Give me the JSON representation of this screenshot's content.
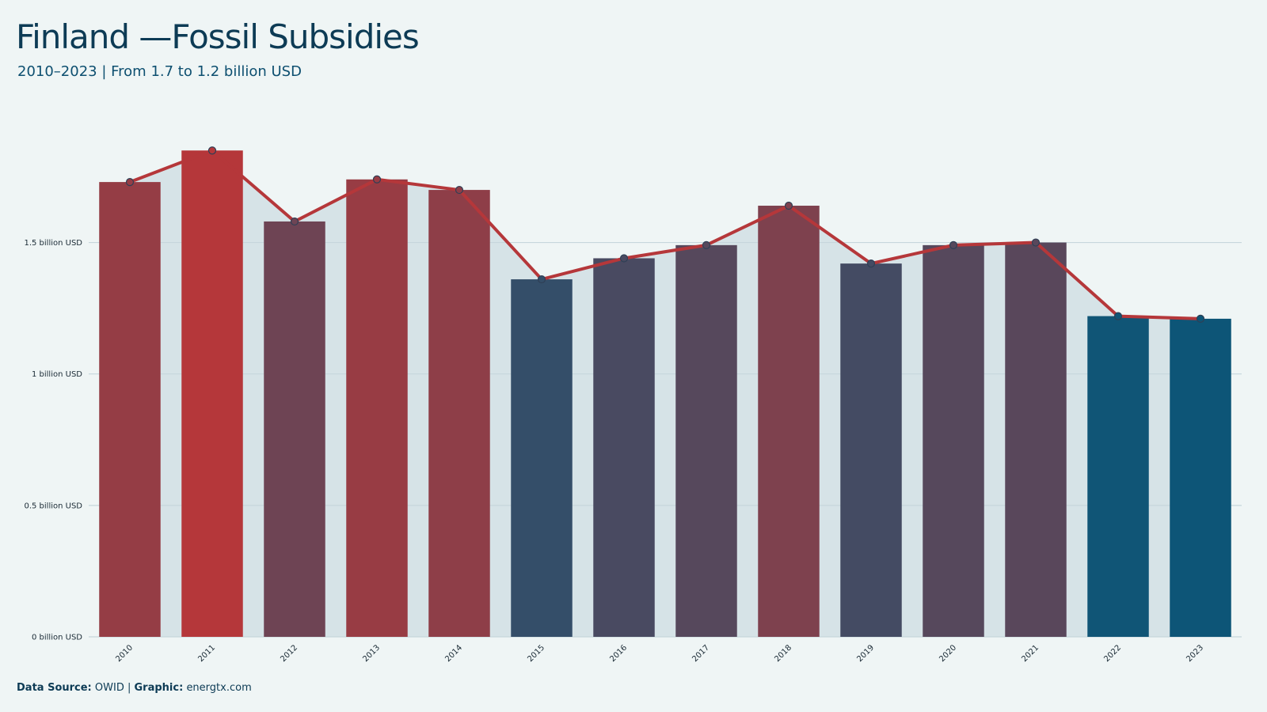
{
  "header": {
    "title": "Finland —Fossil Subsidies",
    "subtitle": "2010–2023 | From 1.7 to 1.2 billion USD"
  },
  "footer": {
    "source_label": "Data Source:",
    "source_value": "OWID",
    "separator": "|",
    "graphic_label": "Graphic:",
    "graphic_value": "energtx.com"
  },
  "colors": {
    "background": "#eff5f5",
    "plot_fill": "#d6e3e7",
    "grid": "#c6d6dc",
    "line": "#b5373a",
    "marker_edge": "#2f3f55",
    "high": "#b5373a",
    "low": "#0d5577"
  },
  "chart_data": {
    "type": "bar",
    "title": "Finland —Fossil Subsidies",
    "subtitle": "2010–2023 | From 1.7 to 1.2 billion USD",
    "xlabel": "",
    "ylabel": "",
    "ylim": [
      0,
      1.95
    ],
    "yticks": [
      0,
      0.5,
      1,
      1.5
    ],
    "ytick_labels": [
      "0 billion USD",
      "0.5 billion USD",
      "1 billion USD",
      "1.5 billion USD"
    ],
    "grid": true,
    "categories": [
      "2010",
      "2011",
      "2012",
      "2013",
      "2014",
      "2015",
      "2016",
      "2017",
      "2018",
      "2019",
      "2020",
      "2021",
      "2022",
      "2023"
    ],
    "values": [
      1.73,
      1.85,
      1.58,
      1.74,
      1.7,
      1.36,
      1.44,
      1.49,
      1.64,
      1.42,
      1.49,
      1.5,
      1.22,
      1.21
    ],
    "overlay": {
      "type": "line",
      "values": [
        1.73,
        1.85,
        1.58,
        1.74,
        1.7,
        1.36,
        1.44,
        1.49,
        1.64,
        1.42,
        1.49,
        1.5,
        1.22,
        1.21
      ]
    }
  }
}
